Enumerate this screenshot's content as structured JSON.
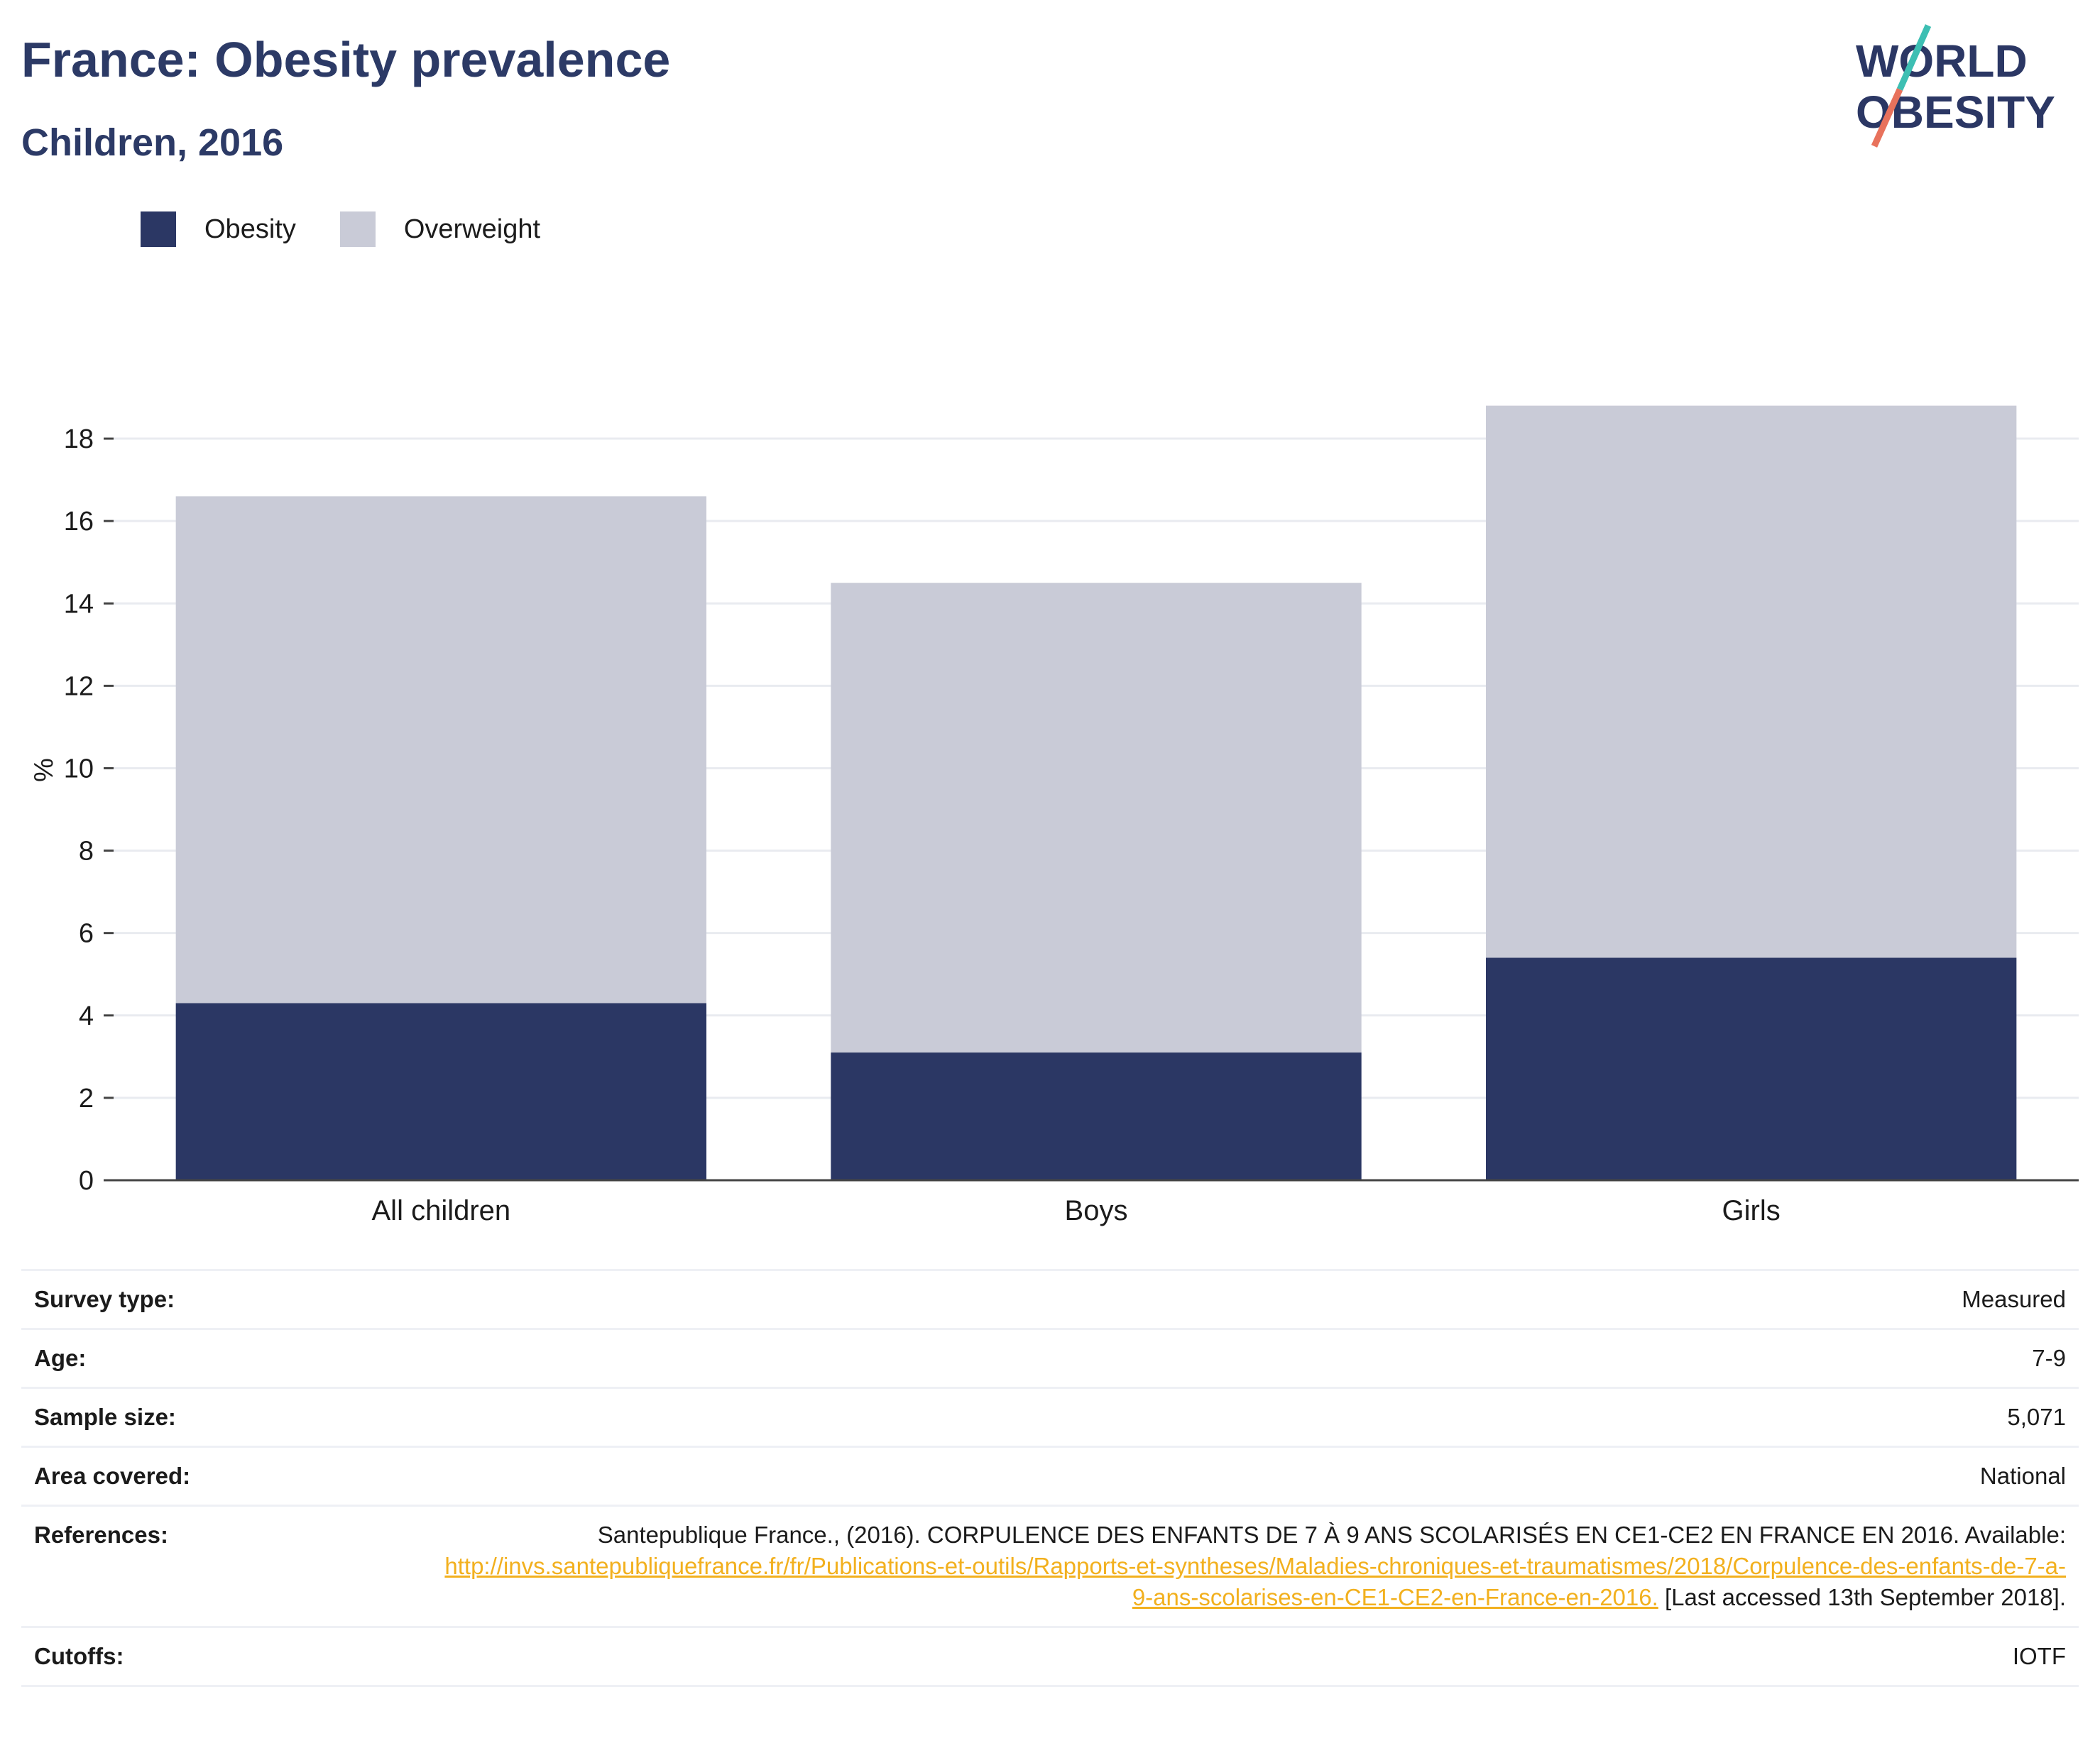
{
  "header": {
    "title": "France: Obesity prevalence",
    "subtitle": "Children, 2016"
  },
  "logo": {
    "line1": "WORLD",
    "line2": "OBESITY"
  },
  "colors": {
    "obesity": "#2b3764",
    "overweight": "#c9cbd7",
    "title": "#2c3a66",
    "link": "#f2b01e",
    "logo_teal": "#3dbfb3",
    "logo_coral": "#e8725c"
  },
  "chart_data": {
    "type": "bar",
    "stacked": true,
    "categories": [
      "All children",
      "Boys",
      "Girls"
    ],
    "series": [
      {
        "name": "Obesity",
        "values": [
          4.3,
          3.1,
          5.4
        ]
      },
      {
        "name": "Overweight",
        "values": [
          12.3,
          11.4,
          13.4
        ]
      }
    ],
    "ylabel": "%",
    "xlabel": "",
    "ylim": [
      0,
      19
    ],
    "yticks": [
      0,
      2,
      4,
      6,
      8,
      10,
      12,
      14,
      16,
      18
    ],
    "grid": true,
    "legend_position": "top-left"
  },
  "info": {
    "rows": [
      {
        "key": "Survey type:",
        "value": "Measured"
      },
      {
        "key": "Age:",
        "value": "7-9"
      },
      {
        "key": "Sample size:",
        "value": "5,071"
      },
      {
        "key": "Area covered:",
        "value": "National"
      }
    ],
    "references": {
      "key": "References:",
      "text_before": "Santepublique France., (2016). CORPULENCE DES ENFANTS DE 7 À 9 ANS SCOLARISÉS EN CE1-CE2 EN FRANCE EN 2016. Available: ",
      "link": "http://invs.santepubliquefrance.fr/fr/Publications-et-outils/Rapports-et-syntheses/Maladies-chroniques-et-traumatismes/2018/Corpulence-des-enfants-de-7-a-9-ans-scolarises-en-CE1-CE2-en-France-en-2016.",
      "text_after": " [Last accessed 13th September 2018]."
    },
    "cutoffs": {
      "key": "Cutoffs:",
      "value": "IOTF"
    }
  }
}
